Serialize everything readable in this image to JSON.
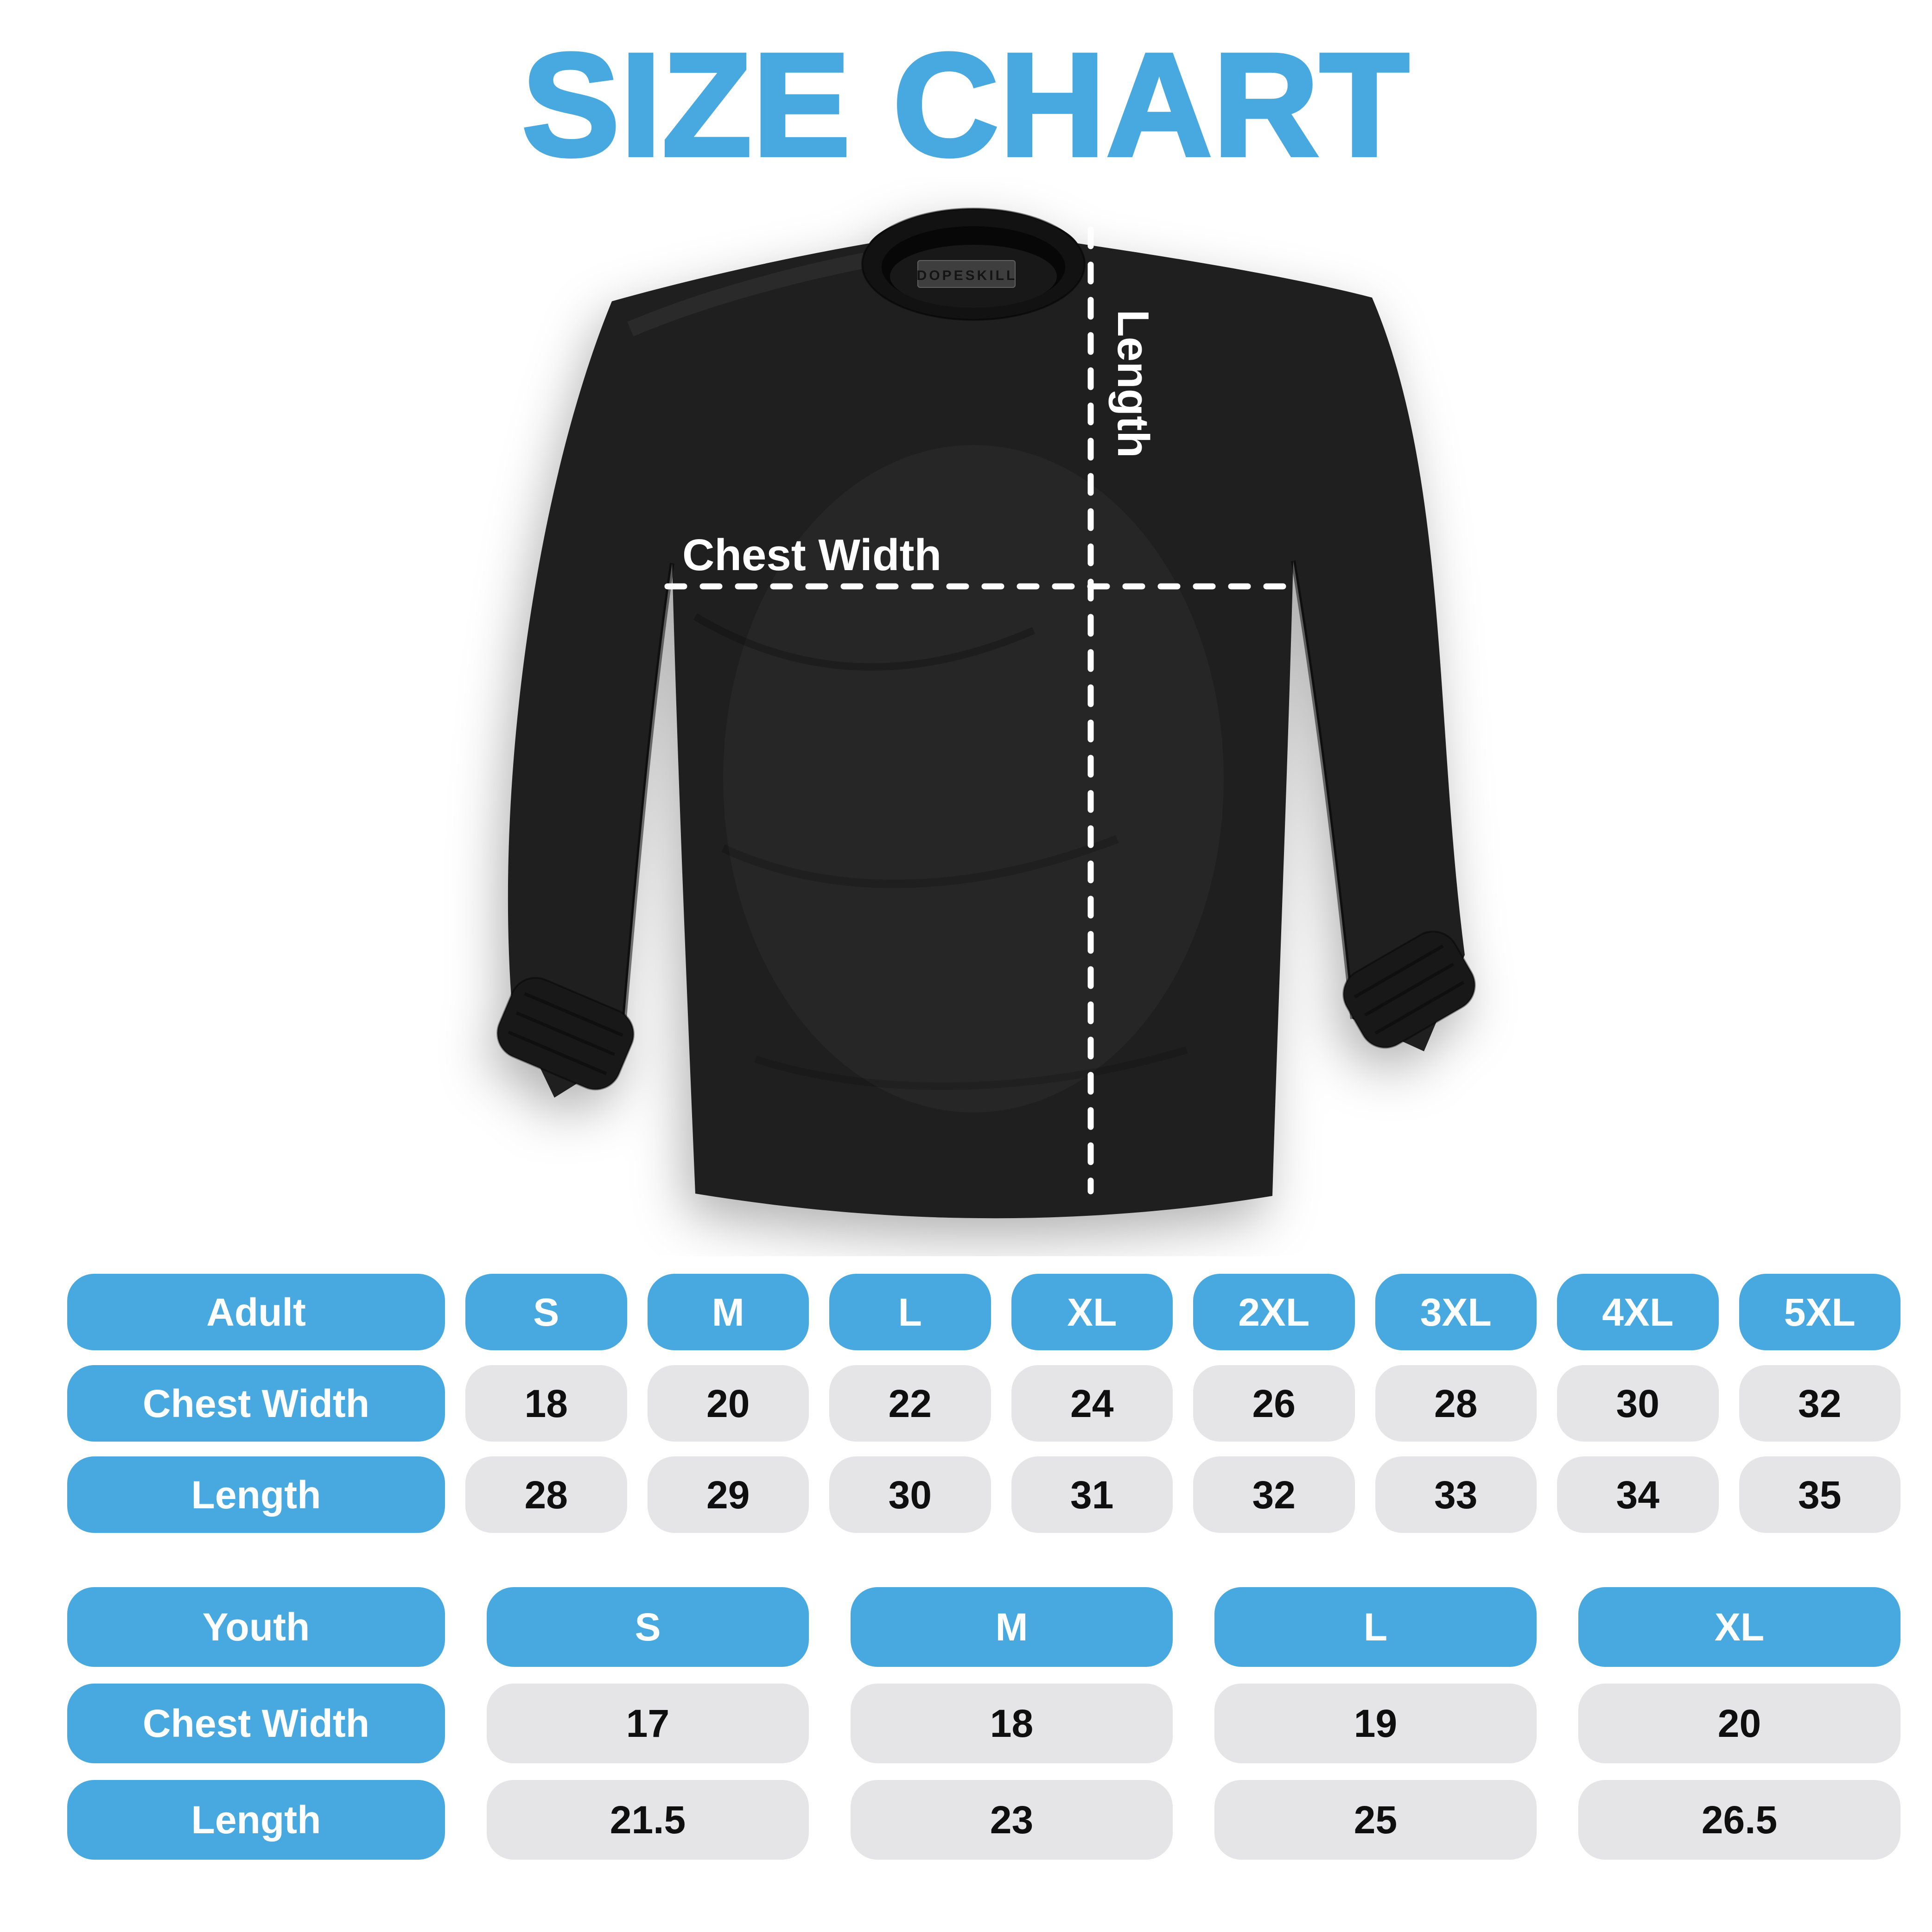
{
  "page": {
    "title": "SIZE CHART",
    "colors": {
      "accent": "#47A9DF",
      "pill_gray": "#E5E5E7",
      "shirt_black": "#1f1f1f",
      "value_text": "#0f0f0f",
      "header_text": "#ffffff"
    }
  },
  "shirt_diagram": {
    "brand_label": "DOPESKILL",
    "length_label": "Length",
    "chest_width_label": "Chest Width"
  },
  "tables": {
    "adult": {
      "header_label": "Adult",
      "sizes": [
        "S",
        "M",
        "L",
        "XL",
        "2XL",
        "3XL",
        "4XL",
        "5XL"
      ],
      "rows": [
        {
          "label": "Chest Width",
          "values": [
            "18",
            "20",
            "22",
            "24",
            "26",
            "28",
            "30",
            "32"
          ]
        },
        {
          "label": "Length",
          "values": [
            "28",
            "29",
            "30",
            "31",
            "32",
            "33",
            "34",
            "35"
          ]
        }
      ]
    },
    "youth": {
      "header_label": "Youth",
      "sizes": [
        "S",
        "M",
        "L",
        "XL"
      ],
      "rows": [
        {
          "label": "Chest Width",
          "values": [
            "17",
            "18",
            "19",
            "20"
          ]
        },
        {
          "label": "Length",
          "values": [
            "21.5",
            "23",
            "25",
            "26.5"
          ]
        }
      ]
    }
  }
}
